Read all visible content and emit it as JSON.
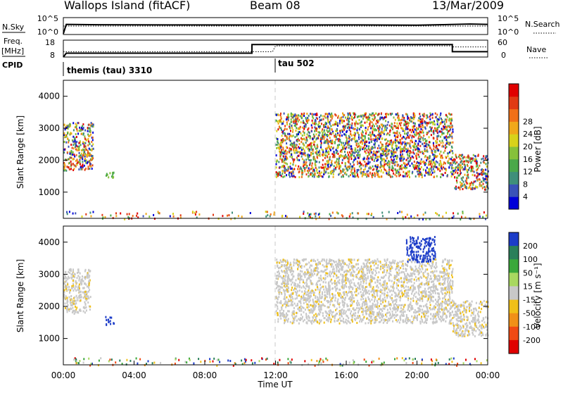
{
  "header": {
    "station": "Wallops Island (fitACF)",
    "beam": "Beam 08",
    "date": "13/Mar/2009"
  },
  "left_labels": {
    "nsky": "N.Sky",
    "freq": "Freq.",
    "freq_unit": "[MHz]",
    "cpid": "CPID"
  },
  "right_labels": {
    "nsearch": "N.Search",
    "nave": "Nave"
  },
  "colors": {
    "background": "#ffffff",
    "axis": "#000000",
    "dashed_marker": "#c8c8c8",
    "velocity_near_zero": "#c8c8c8"
  },
  "chart_data": [
    {
      "type": "line",
      "panel": "noise",
      "left_axis": {
        "ticks": [
          "10^5",
          "10^0"
        ]
      },
      "right_axis": {
        "ticks": [
          "10^5",
          "10^0"
        ]
      },
      "series": [
        {
          "name": "N.Sky",
          "style": "solid",
          "x": [
            "00:00",
            "00:10",
            "02:00",
            "06:00",
            "12:00",
            "16:00",
            "20:00",
            "23:00",
            "24:00"
          ],
          "y_frac": [
            0.05,
            0.6,
            0.58,
            0.57,
            0.56,
            0.57,
            0.55,
            0.62,
            0.6
          ]
        },
        {
          "name": "N.Search",
          "style": "dotted",
          "x": [
            "00:00",
            "24:00"
          ],
          "y_frac": [
            0.5,
            0.5
          ]
        }
      ]
    },
    {
      "type": "line",
      "panel": "frequency",
      "left_axis": {
        "ticks": [
          18,
          8
        ]
      },
      "right_axis": {
        "ticks": [
          60,
          0
        ]
      },
      "series": [
        {
          "name": "Freq.",
          "style": "solid",
          "x": [
            "00:00",
            "00:10",
            "10:40",
            "10:40",
            "22:00",
            "22:00",
            "24:00"
          ],
          "y": [
            8,
            10.3,
            10.3,
            15.4,
            15.4,
            11.2,
            11.2
          ]
        },
        {
          "name": "Nave",
          "style": "dotted",
          "x": [
            "00:00",
            "11:50",
            "12:00",
            "22:00",
            "22:00",
            "24:00"
          ],
          "y": [
            11.2,
            11.2,
            14.6,
            14.6,
            14.0,
            14.0
          ]
        }
      ]
    },
    {
      "type": "text",
      "panel": "cpid",
      "entries": [
        {
          "x": "00:00",
          "label": "themis (tau) 3310"
        },
        {
          "x": "11:50",
          "label": "tau 502"
        }
      ]
    },
    {
      "type": "heatmap",
      "panel": "power",
      "ylabel": "Slant Range [km]",
      "ylim": [
        180,
        4500
      ],
      "yticks": [
        1000,
        2000,
        3000,
        4000
      ],
      "colorbar_label": "Power [dB]",
      "colorbar_ticks": [
        4,
        8,
        12,
        16,
        20,
        24,
        28
      ],
      "colorbar_colors": [
        "#0000d8",
        "#3a52b8",
        "#3f8f7a",
        "#4aa84a",
        "#86c13a",
        "#d8d21a",
        "#f0a81a",
        "#f07018",
        "#e03a14",
        "#e00000"
      ],
      "regions": [
        {
          "name": "early echo band",
          "x": [
            "00:00",
            "01:40"
          ],
          "range_km": [
            1700,
            3200
          ],
          "level": "high"
        },
        {
          "name": "small patch",
          "x": [
            "02:20",
            "02:50"
          ],
          "range_km": [
            1450,
            1650
          ],
          "level": "mid"
        },
        {
          "name": "main echo band",
          "x": [
            "12:00",
            "22:00"
          ],
          "range_km": [
            1500,
            3500
          ],
          "level": "high"
        },
        {
          "name": "late echo band",
          "x": [
            "22:00",
            "24:00"
          ],
          "range_km": [
            1100,
            2200
          ],
          "level": "high"
        },
        {
          "name": "near-range clutter",
          "x": [
            "00:00",
            "24:00"
          ],
          "range_km": [
            180,
            420
          ],
          "level": "mixed"
        }
      ]
    },
    {
      "type": "heatmap",
      "panel": "velocity",
      "ylabel": "Slant Range [km]",
      "ylim": [
        180,
        4500
      ],
      "yticks": [
        1000,
        2000,
        3000,
        4000
      ],
      "xlabel": "Time UT",
      "xticks": [
        "00:00",
        "04:00",
        "08:00",
        "12:00",
        "16:00",
        "20:00",
        "00:00"
      ],
      "colorbar_label": "Velocity [m s⁻¹]",
      "colorbar_ticks": [
        200,
        100,
        50,
        15,
        -15,
        -50,
        -100,
        -200
      ],
      "colorbar_colors": [
        "#1c3cc8",
        "#2a7f5a",
        "#3aa83a",
        "#a8d860",
        "#c8c8c8",
        "#f0c018",
        "#f09018",
        "#f04a14",
        "#e00000"
      ],
      "regions": [
        {
          "name": "early band",
          "x": [
            "00:00",
            "01:30"
          ],
          "range_km": [
            1800,
            3200
          ],
          "velocity": "near zero / slightly negative"
        },
        {
          "name": "small patch",
          "x": [
            "02:20",
            "02:50"
          ],
          "range_km": [
            1450,
            1700
          ],
          "velocity": "positive (blue)"
        },
        {
          "name": "main band",
          "x": [
            "12:00",
            "22:00"
          ],
          "range_km": [
            1500,
            3500
          ],
          "velocity": "near zero (grey)"
        },
        {
          "name": "high-range patch",
          "x": [
            "19:20",
            "21:00"
          ],
          "range_km": [
            3400,
            4200
          ],
          "velocity": "positive (blue)"
        },
        {
          "name": "late band",
          "x": [
            "22:00",
            "24:00"
          ],
          "range_km": [
            1100,
            2200
          ],
          "velocity": "near zero"
        },
        {
          "name": "near-range clutter",
          "x": [
            "00:00",
            "24:00"
          ],
          "range_km": [
            180,
            420
          ],
          "velocity": "mixed"
        }
      ]
    }
  ]
}
